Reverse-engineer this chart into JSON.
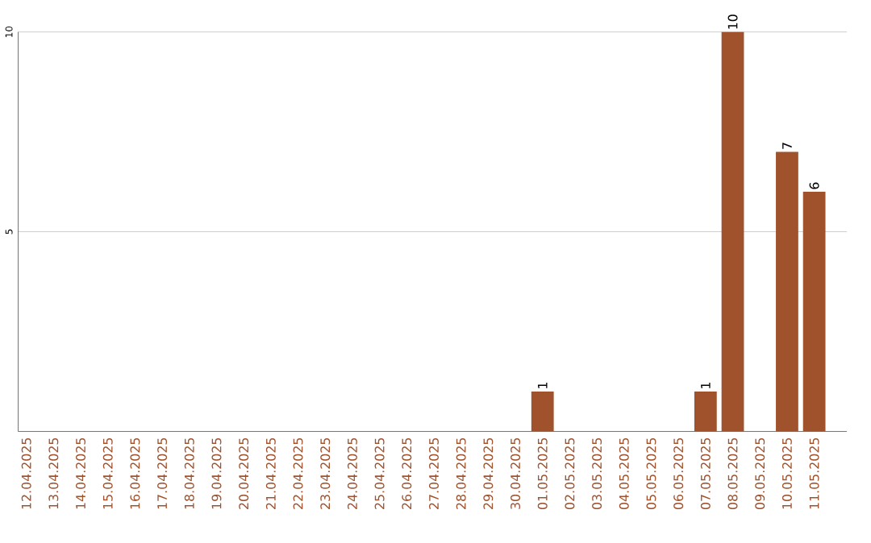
{
  "chart_data": {
    "type": "bar",
    "categories": [
      "12.04.2025",
      "13.04.2025",
      "14.04.2025",
      "15.04.2025",
      "16.04.2025",
      "17.04.2025",
      "18.04.2025",
      "19.04.2025",
      "20.04.2025",
      "21.04.2025",
      "22.04.2025",
      "23.04.2025",
      "24.04.2025",
      "25.04.2025",
      "26.04.2025",
      "27.04.2025",
      "28.04.2025",
      "29.04.2025",
      "30.04.2025",
      "01.05.2025",
      "02.05.2025",
      "03.05.2025",
      "04.05.2025",
      "05.05.2025",
      "06.05.2025",
      "07.05.2025",
      "08.05.2025",
      "09.05.2025",
      "10.05.2025",
      "11.05.2025"
    ],
    "values": [
      0,
      0,
      0,
      0,
      0,
      0,
      0,
      0,
      0,
      0,
      0,
      0,
      0,
      0,
      0,
      0,
      0,
      0,
      0,
      1,
      0,
      0,
      0,
      0,
      0,
      1,
      10,
      0,
      7,
      6
    ],
    "value_labels": [
      null,
      null,
      null,
      null,
      null,
      null,
      null,
      null,
      null,
      null,
      null,
      null,
      null,
      null,
      null,
      null,
      null,
      null,
      null,
      "1",
      null,
      null,
      null,
      null,
      null,
      "1",
      "10",
      null,
      "7",
      "6"
    ],
    "color": "#a0522d",
    "ylim": [
      0,
      10
    ],
    "yticks": [
      5,
      10
    ],
    "grid": "y"
  }
}
